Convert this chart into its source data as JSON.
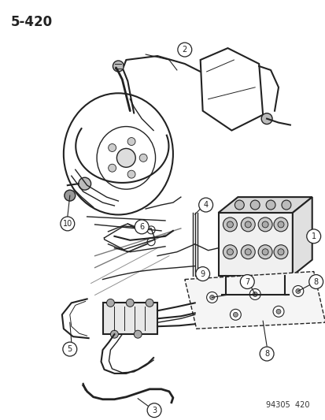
{
  "page_number": "5-420",
  "doc_number": "94305  420",
  "bg_color": "#ffffff",
  "line_color": "#222222",
  "fig_w": 4.14,
  "fig_h": 5.33,
  "dpi": 100
}
